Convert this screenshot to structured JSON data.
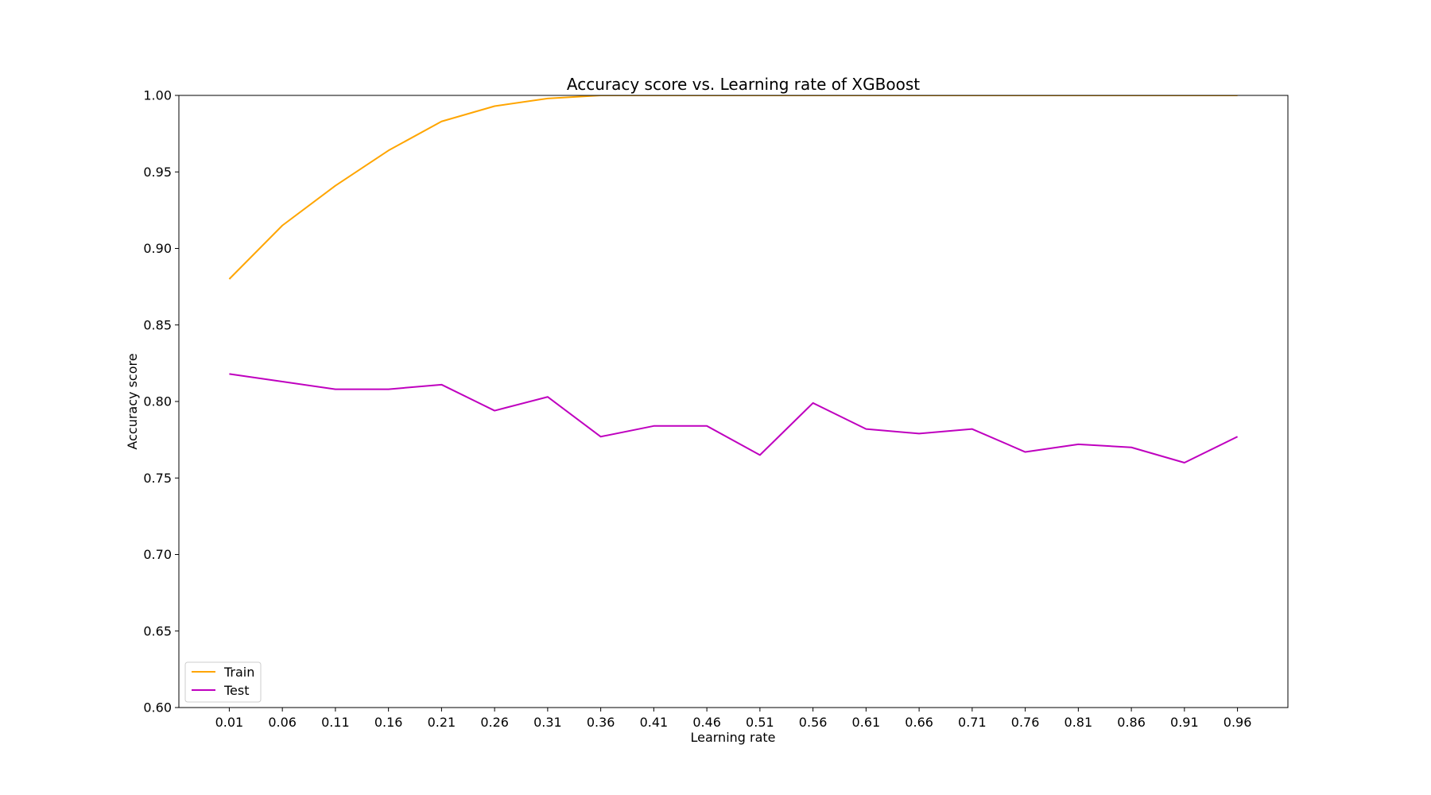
{
  "chart_data": {
    "type": "line",
    "title": "Accuracy score vs. Learning rate of XGBoost",
    "xlabel": "Learning rate",
    "ylabel": "Accuracy score",
    "x": [
      0.01,
      0.06,
      0.11,
      0.16,
      0.21,
      0.26,
      0.31,
      0.36,
      0.41,
      0.46,
      0.51,
      0.56,
      0.61,
      0.66,
      0.71,
      0.76,
      0.81,
      0.86,
      0.91,
      0.96
    ],
    "xtick_labels": [
      "0.01",
      "0.06",
      "0.11",
      "0.16",
      "0.21",
      "0.26",
      "0.31",
      "0.36",
      "0.41",
      "0.46",
      "0.51",
      "0.56",
      "0.61",
      "0.66",
      "0.71",
      "0.76",
      "0.81",
      "0.86",
      "0.91",
      "0.96"
    ],
    "xlim": [
      -0.0375,
      1.0075
    ],
    "ylim": [
      0.6,
      1.0
    ],
    "yticks": [
      0.6,
      0.65,
      0.7,
      0.75,
      0.8,
      0.85,
      0.9,
      0.95,
      1.0
    ],
    "ytick_labels": [
      "0.60",
      "0.65",
      "0.70",
      "0.75",
      "0.80",
      "0.85",
      "0.90",
      "0.95",
      "1.00"
    ],
    "grid": false,
    "legend_position": "lower-left",
    "series": [
      {
        "name": "Train",
        "color": "#ffa500",
        "values": [
          0.88,
          0.915,
          0.941,
          0.964,
          0.983,
          0.993,
          0.998,
          1.0,
          1.0,
          1.0,
          1.0,
          1.0,
          1.0,
          1.0,
          1.0,
          1.0,
          1.0,
          1.0,
          1.0,
          1.0
        ]
      },
      {
        "name": "Test",
        "color": "#bf00bf",
        "values": [
          0.818,
          0.813,
          0.808,
          0.808,
          0.811,
          0.794,
          0.803,
          0.777,
          0.784,
          0.784,
          0.765,
          0.799,
          0.782,
          0.779,
          0.782,
          0.767,
          0.772,
          0.77,
          0.76,
          0.777
        ]
      }
    ]
  }
}
